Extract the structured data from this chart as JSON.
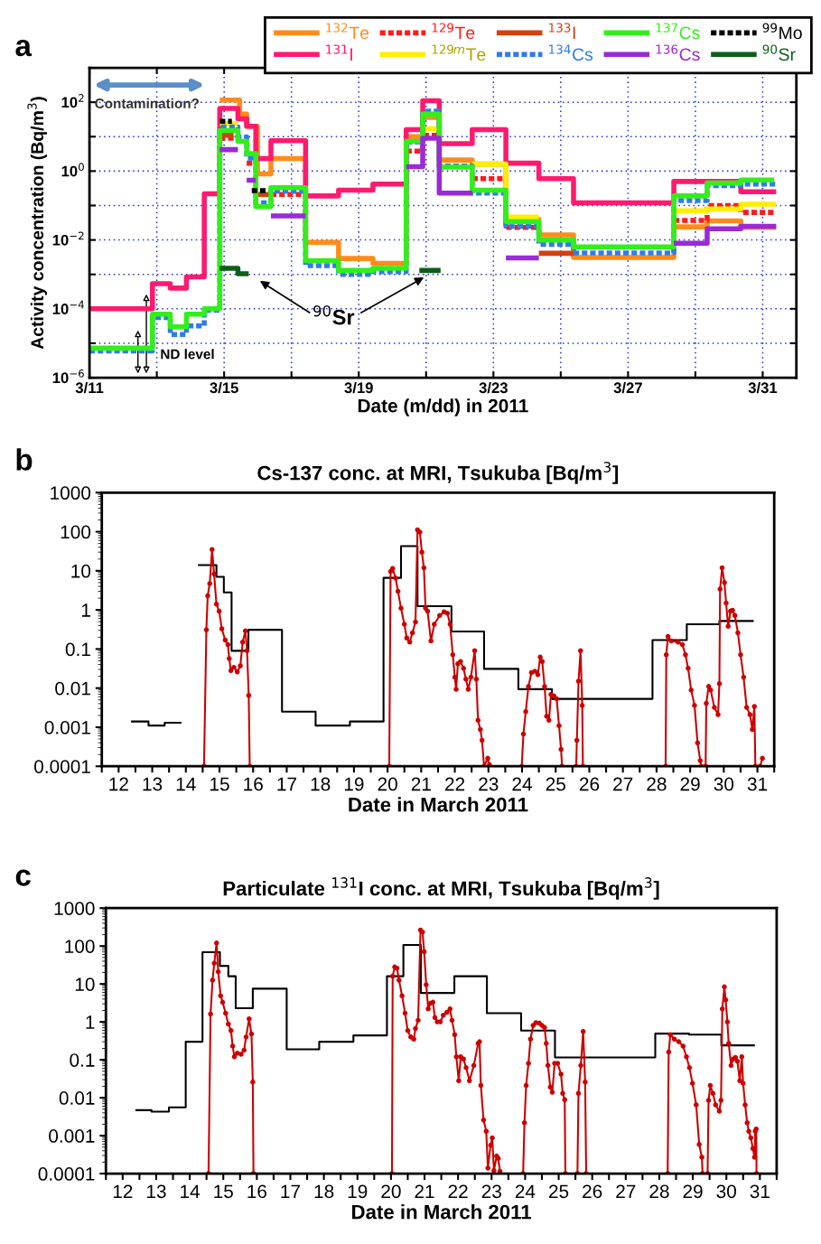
{
  "chart_data": [
    {
      "type": "step",
      "xlabel": "Date (m/dd) in 2011",
      "ylabel": "Activity concentration (Bq/m$^{3}$)",
      "log": "y",
      "grid": true,
      "legend": "top right",
      "xlim": [
        "2011-03-11",
        "2011-04-01"
      ],
      "ylim": [
        1e-06,
        1000
      ],
      "xticks": [
        {
          "value": "2011-03-11",
          "label": "3/11"
        },
        {
          "value": "2011-03-13",
          "label": null
        },
        {
          "value": "2011-03-15",
          "label": "3/15"
        },
        {
          "value": "2011-03-17",
          "label": null
        },
        {
          "value": "2011-03-19",
          "label": "3/19"
        },
        {
          "value": "2011-03-21",
          "label": null
        },
        {
          "value": "2011-03-23",
          "label": "3/23"
        },
        {
          "value": "2011-03-25",
          "label": null
        },
        {
          "value": "2011-03-27",
          "label": "3/27"
        },
        {
          "value": "2011-03-29",
          "label": null
        },
        {
          "value": "2011-03-31",
          "label": "3/31"
        }
      ],
      "yticks": [
        {
          "value": 1e-06,
          "label": "10$^{−6}$"
        },
        {
          "value": 1e-05,
          "label": null
        },
        {
          "value": 0.0001,
          "label": "10$^{−4}$"
        },
        {
          "value": 0.001,
          "label": null
        },
        {
          "value": 0.01,
          "label": "10$^{−2}$"
        },
        {
          "value": 0.1,
          "label": null
        },
        {
          "value": 1,
          "label": "10$^{0}$"
        },
        {
          "value": 10,
          "label": null
        },
        {
          "value": 100,
          "label": "10$^{2}$"
        },
        {
          "value": 1000,
          "label": null
        }
      ],
      "annotations": [
        "a",
        "Contamination?",
        "ND level",
        "$^{90}$Sr"
      ],
      "series": [
        {
          "name": "$^{132}$Te",
          "color": "#ff8c1a",
          "x": [
            "2011-03-14T20:53",
            "2011-03-15T11:02",
            "2011-03-15T16:05",
            "2011-03-15T23:46",
            "2011-03-16T09:22",
            "2011-03-17T10:05",
            "2011-03-18T09:36",
            "2011-03-19T10:05",
            "2011-03-20T09:50",
            "2011-03-20T21:36",
            "2011-03-21T09:22",
            "2011-03-22T08:53",
            "2011-03-23T08:53",
            "2011-03-24T08:24",
            "2011-03-25T09:07",
            "2011-03-28T08:38",
            "2011-03-29T08:24",
            "2011-03-30T08:24",
            "2011-03-31T09:36"
          ],
          "values": [
            115,
            45,
            20,
            0.83,
            2.3,
            0.0085,
            0.0029,
            0.0021,
            10,
            36,
            2.1,
            1.6,
            0.04,
            0.014,
            0.0031,
            0.024,
            0.036,
            0.023,
            0.023
          ]
        },
        {
          "name": "$^{131}$I",
          "color": "#ff1a6e",
          "x": [
            "2011-03-11T00:00",
            "2011-03-12T20:53",
            "2011-03-13T09:36",
            "2011-03-13T21:07",
            "2011-03-14T09:50",
            "2011-03-14T20:53",
            "2011-03-15T09:50",
            "2011-03-15T16:05",
            "2011-03-15T22:34",
            "2011-03-16T09:22",
            "2011-03-17T10:05",
            "2011-03-18T09:36",
            "2011-03-19T10:05",
            "2011-03-20T09:50",
            "2011-03-20T21:36",
            "2011-03-21T09:22",
            "2011-03-22T08:53",
            "2011-03-23T08:53",
            "2011-03-24T08:24",
            "2011-03-25T09:07",
            "2011-03-28T08:38",
            "2011-03-30T08:24",
            "2011-03-31T09:36"
          ],
          "values": [
            0.0001,
            0.00054,
            0.0004,
            0.00085,
            0.22,
            66,
            33,
            20,
            2.3,
            7.6,
            0.19,
            0.28,
            0.42,
            16,
            110,
            6.3,
            16,
            1.7,
            0.6,
            0.12,
            0.5,
            0.25,
            0.25
          ]
        },
        {
          "name": "$^{129}$Te",
          "color": "#ff1a1a",
          "line_style": "dashed",
          "x": [
            "2011-03-14T20:53",
            "2011-03-15T09:50",
            "2011-03-15T16:05",
            "2011-03-15T22:34",
            "2011-03-16T09:22",
            "2011-03-17T10:05",
            "2011-03-20T09:50",
            "2011-03-20T21:36",
            "2011-03-21T09:22",
            "2011-03-22T08:53",
            "2011-03-23T08:53",
            "2011-03-24T08:24",
            "2011-03-28T08:38",
            "2011-03-29T08:24",
            "2011-03-30T08:24",
            "2011-03-31T09:36"
          ],
          "values": [
            9,
            null,
            1.7,
            null,
            0.21,
            null,
            3.8,
            11,
            null,
            0.6,
            0.023,
            null,
            0.037,
            0.1,
            0.063,
            0.063
          ]
        },
        {
          "name": "$^{129m}$Te",
          "color": "#ffee00",
          "x": [
            "2011-03-14T20:53",
            "2011-03-15T09:50",
            "2011-03-20T21:36",
            "2011-03-21T09:22",
            "2011-03-22T08:53",
            "2011-03-23T08:53",
            "2011-03-24T08:24",
            "2011-03-28T08:38",
            "2011-03-29T08:24",
            "2011-03-30T08:24",
            "2011-03-31T09:36"
          ],
          "values": [
            24,
            null,
            17,
            null,
            1.6,
            0.046,
            null,
            0.07,
            0.08,
            0.11,
            0.11
          ]
        },
        {
          "name": "$^{133}$I",
          "color": "#d4400c",
          "x": [
            "2011-03-14T20:53",
            "2011-03-15T06:43",
            "2011-03-15T22:34",
            "2011-03-16T09:22",
            "2011-03-24T08:24",
            "2011-03-25T09:07"
          ],
          "values": [
            11,
            null,
            0.21,
            null,
            0.0041,
            0.0041
          ]
        },
        {
          "name": "$^{134}$Cs",
          "color": "#2f7bf0",
          "line_style": "dashed",
          "x": [
            "2011-03-11T00:00",
            "2011-03-12T20:53",
            "2011-03-13T09:36",
            "2011-03-13T21:07",
            "2011-03-14T09:50",
            "2011-03-14T20:53",
            "2011-03-15T09:50",
            "2011-03-15T16:05",
            "2011-03-15T22:34",
            "2011-03-16T09:22",
            "2011-03-17T10:05",
            "2011-03-18T09:36",
            "2011-03-19T10:05",
            "2011-03-20T09:50",
            "2011-03-20T21:36",
            "2011-03-21T09:22",
            "2011-03-22T08:53",
            "2011-03-23T08:53",
            "2011-03-24T08:24",
            "2011-03-25T09:07",
            "2011-03-28T08:38",
            "2011-03-29T08:24",
            "2011-03-30T08:24",
            "2011-03-31T09:36"
          ],
          "values": [
            6e-06,
            5.6e-05,
            1.8e-05,
            3.2e-05,
            9e-05,
            19,
            9.8,
            2.4,
            0.12,
            0.26,
            0.0018,
            0.001,
            0.0012,
            7,
            55,
            1.4,
            0.23,
            0.025,
            0.0074,
            0.0042,
            0.14,
            0.38,
            0.42,
            0.42
          ]
        },
        {
          "name": "$^{137}$Cs",
          "color": "#33ee1a",
          "x": [
            "2011-03-11T00:00",
            "2011-03-12T20:53",
            "2011-03-13T09:36",
            "2011-03-13T21:07",
            "2011-03-14T09:50",
            "2011-03-14T20:53",
            "2011-03-15T09:50",
            "2011-03-15T16:05",
            "2011-03-15T22:34",
            "2011-03-16T09:22",
            "2011-03-17T10:05",
            "2011-03-18T09:36",
            "2011-03-19T10:05",
            "2011-03-20T09:50",
            "2011-03-20T21:36",
            "2011-03-21T09:22",
            "2011-03-22T08:53",
            "2011-03-23T08:53",
            "2011-03-24T08:24",
            "2011-03-25T09:07",
            "2011-03-28T08:38",
            "2011-03-29T08:24",
            "2011-03-30T08:24",
            "2011-03-31T08:10"
          ],
          "values": [
            7.2e-06,
            7e-05,
            3e-05,
            7e-05,
            0.0001,
            15,
            7.3,
            3.2,
            0.093,
            0.33,
            0.0025,
            0.0013,
            0.0015,
            7.3,
            45,
            1.3,
            0.28,
            0.034,
            0.01,
            0.0063,
            0.19,
            0.45,
            0.55,
            0.55
          ]
        },
        {
          "name": "$^{136}$Cs",
          "color": "#9a2ad6",
          "x": [
            "2011-03-14T20:53",
            "2011-03-15T09:50",
            "2011-03-15T16:05",
            "2011-03-15T22:34",
            "2011-03-16T09:22",
            "2011-03-17T10:05",
            "2011-03-20T09:50",
            "2011-03-20T21:36",
            "2011-03-21T09:22",
            "2011-03-22T08:53",
            "2011-03-23T08:53",
            "2011-03-24T08:24",
            "2011-03-28T08:38",
            "2011-03-29T08:24",
            "2011-03-30T08:24",
            "2011-03-31T09:36"
          ],
          "values": [
            4.2,
            null,
            0.54,
            null,
            0.05,
            null,
            1.35,
            9,
            0.23,
            null,
            0.003,
            null,
            0.008,
            0.021,
            0.025,
            0.025
          ]
        },
        {
          "name": "$^{99}$Mo",
          "color": "#000000",
          "line_style": "dashed",
          "x": [
            "2011-03-14T20:53",
            "2011-03-15T05:31",
            "2011-03-15T19:41",
            "2011-03-16T06:29"
          ],
          "values": [
            28,
            null,
            0.27,
            0.27
          ]
        },
        {
          "name": "$^{90}$Sr",
          "color": "#0d5e1a",
          "x": [
            "2011-03-14T20:53",
            "2011-03-15T09:50",
            "2011-03-15T17:31",
            "2011-03-20T19:12",
            "2011-03-21T10:19"
          ],
          "values": [
            0.0015,
            0.00105,
            null,
            0.0013,
            0.0013
          ]
        }
      ]
    },
    {
      "type": "line",
      "title": "Cs-137 conc. at MRI, Tsukuba [Bq/m$^{3}$]",
      "xlabel": "Date in March 2011",
      "log": "y",
      "xlim": [
        12,
        32
      ],
      "ylim": [
        0.0001,
        1000
      ],
      "xticks": [
        {
          "value": 12,
          "label": null
        },
        {
          "value": 12.5,
          "label": "12"
        },
        {
          "value": 13,
          "label": null
        },
        {
          "value": 13.5,
          "label": "13"
        },
        {
          "value": 14,
          "label": null
        },
        {
          "value": 14.5,
          "label": "14"
        },
        {
          "value": 15,
          "label": null
        },
        {
          "value": 15.5,
          "label": "15"
        },
        {
          "value": 16,
          "label": null
        },
        {
          "value": 16.5,
          "label": "16"
        },
        {
          "value": 17,
          "label": null
        },
        {
          "value": 17.5,
          "label": "17"
        },
        {
          "value": 18,
          "label": null
        },
        {
          "value": 18.5,
          "label": "18"
        },
        {
          "value": 19,
          "label": null
        },
        {
          "value": 19.5,
          "label": "19"
        },
        {
          "value": 20,
          "label": null
        },
        {
          "value": 20.5,
          "label": "20"
        },
        {
          "value": 21,
          "label": null
        },
        {
          "value": 21.5,
          "label": "21"
        },
        {
          "value": 22,
          "label": null
        },
        {
          "value": 22.5,
          "label": "22"
        },
        {
          "value": 23,
          "label": null
        },
        {
          "value": 23.5,
          "label": "23"
        },
        {
          "value": 24,
          "label": null
        },
        {
          "value": 24.5,
          "label": "24"
        },
        {
          "value": 25,
          "label": null
        },
        {
          "value": 25.5,
          "label": "25"
        },
        {
          "value": 26,
          "label": null
        },
        {
          "value": 26.5,
          "label": "26"
        },
        {
          "value": 27,
          "label": null
        },
        {
          "value": 27.5,
          "label": "27"
        },
        {
          "value": 28,
          "label": null
        },
        {
          "value": 28.5,
          "label": "28"
        },
        {
          "value": 29,
          "label": null
        },
        {
          "value": 29.5,
          "label": "29"
        },
        {
          "value": 30,
          "label": null
        },
        {
          "value": 30.5,
          "label": "30"
        },
        {
          "value": 31,
          "label": null
        },
        {
          "value": 31.5,
          "label": "31"
        },
        {
          "value": 32,
          "label": null
        }
      ],
      "yticks": [
        0.0001,
        0.001,
        0.01,
        0.1,
        1,
        10,
        100,
        1000
      ],
      "annotations": [
        "b"
      ],
      "series": [
        {
          "type": "step",
          "color": "#000000",
          "x": [
            12.87,
            13.39,
            13.87,
            14.37,
            14.86,
            15.41,
            15.63,
            15.86,
            16.36,
            17.36,
            18.36,
            19.38,
            20.38,
            20.9,
            21.39,
            22.4,
            23.37,
            24.39,
            25.39,
            28.38,
            29.4,
            30.37,
            31.39
          ],
          "values": [
            0.0014,
            0.0011,
            0.0013,
            null,
            14,
            7,
            2.8,
            0.09,
            0.31,
            0.0025,
            0.0011,
            0.0014,
            6.6,
            43,
            1.25,
            0.28,
            0.031,
            0.0094,
            0.0053,
            0.17,
            0.43,
            0.52,
            0.52
          ]
        },
        {
          "type": "line",
          "color": "#cc0000",
          "marker": "circle",
          "x": [
            15.04,
            15.11,
            15.15,
            15.21,
            15.28,
            15.34,
            15.41,
            15.49,
            15.57,
            15.67,
            15.75,
            15.79,
            15.84,
            15.93,
            16.03,
            16.12,
            16.19,
            16.27,
            16.32,
            16.37,
            16.4,
            18,
            20.55,
            20.59,
            20.65,
            20.74,
            20.81,
            20.9,
            21.0,
            21.07,
            21.16,
            21.24,
            21.33,
            21.39,
            21.46,
            21.52,
            21.58,
            21.63,
            21.69,
            21.79,
            21.89,
            22.05,
            22.18,
            22.28,
            22.36,
            22.44,
            22.5,
            22.54,
            22.59,
            22.67,
            22.76,
            22.83,
            22.9,
            22.98,
            23.09,
            23.14,
            23.19,
            23.26,
            23.31,
            23.37,
            23.48,
            23.53,
            24,
            24.49,
            24.54,
            24.61,
            24.69,
            24.78,
            24.88,
            24.97,
            25.04,
            25.1,
            25.17,
            25.23,
            25.3,
            25.36,
            25.45,
            25.53,
            25.6,
            25.66,
            25.69,
            25.9,
            26.11,
            26.13,
            26.18,
            26.24,
            26.29,
            26.31,
            27,
            28.77,
            28.79,
            28.84,
            28.94,
            29.14,
            29.27,
            29.36,
            29.44,
            29.53,
            29.63,
            29.72,
            29.8,
            29.83,
            29.9,
            29.96,
            29.98,
            30.05,
            30.11,
            30.22,
            30.33,
            30.37,
            30.39,
            30.45,
            30.52,
            30.57,
            30.63,
            30.7,
            30.76,
            30.83,
            30.92,
            31.0,
            31.09,
            31.18,
            31.28,
            31.35,
            31.41,
            31.44,
            31.5,
            31.58,
            31.65
          ],
          "values": [
            0.0001,
            0.31,
            2.3,
            4.7,
            35,
            8.3,
            1.4,
            0.93,
            0.33,
            0.17,
            0.13,
            0.057,
            0.028,
            0.034,
            0.026,
            0.037,
            0.15,
            0.29,
            0.091,
            0.0065,
            0.0001,
            null,
            0.0001,
            9.6,
            11.5,
            6.5,
            3.0,
            1.1,
            0.43,
            0.19,
            0.15,
            0.26,
            0.49,
            112,
            98,
            30,
            12,
            1.1,
            0.93,
            0.16,
            0.43,
            0.72,
            0.89,
            0.82,
            0.43,
            0.071,
            0.019,
            0.0093,
            0.042,
            0.048,
            0.032,
            0.017,
            0.0093,
            0.019,
            0.091,
            0.017,
            0.0015,
            0.00087,
            0.00046,
            0.0001,
            0.00016,
            0.00011,
            null,
            0.0001,
            0.00067,
            0.0025,
            0.011,
            0.025,
            0.027,
            0.022,
            0.062,
            0.048,
            0.011,
            0.0019,
            0.0015,
            0.0069,
            0.0063,
            0.0053,
            0.0011,
            0.00027,
            0.0001,
            null,
            0.0001,
            0.00046,
            0.015,
            0.091,
            0.0036,
            0.0001,
            null,
            0.0001,
            0.071,
            0.21,
            0.16,
            0.15,
            0.13,
            0.071,
            0.032,
            0.0089,
            0.0036,
            0.0004,
            0.00014,
            0.0001,
            null,
            0.0001,
            0.0041,
            0.011,
            0.0089,
            0.0032,
            0.0021,
            0.013,
            3.4,
            12,
            5.0,
            1.5,
            0.38,
            0.93,
            0.98,
            0.72,
            0.26,
            0.071,
            0.019,
            0.0032,
            0.0021,
            0.00087,
            0.0034,
            0.0001,
            null,
            0.0001,
            0.00016
          ]
        }
      ]
    },
    {
      "type": "line",
      "title": "Particulate $^{131}$I conc. at MRI, Tsukuba [Bq/m$^{3}$]",
      "xlabel": "Date in March 2011",
      "log": "y",
      "xlim": [
        12,
        32
      ],
      "ylim": [
        0.0001,
        1000
      ],
      "xticks": [
        {
          "value": 12,
          "label": null
        },
        {
          "value": 12.5,
          "label": "12"
        },
        {
          "value": 13,
          "label": null
        },
        {
          "value": 13.5,
          "label": "13"
        },
        {
          "value": 14,
          "label": null
        },
        {
          "value": 14.5,
          "label": "14"
        },
        {
          "value": 15,
          "label": null
        },
        {
          "value": 15.5,
          "label": "15"
        },
        {
          "value": 16,
          "label": null
        },
        {
          "value": 16.5,
          "label": "16"
        },
        {
          "value": 17,
          "label": null
        },
        {
          "value": 17.5,
          "label": "17"
        },
        {
          "value": 18,
          "label": null
        },
        {
          "value": 18.5,
          "label": "18"
        },
        {
          "value": 19,
          "label": null
        },
        {
          "value": 19.5,
          "label": "19"
        },
        {
          "value": 20,
          "label": null
        },
        {
          "value": 20.5,
          "label": "20"
        },
        {
          "value": 21,
          "label": null
        },
        {
          "value": 21.5,
          "label": "21"
        },
        {
          "value": 22,
          "label": null
        },
        {
          "value": 22.5,
          "label": "22"
        },
        {
          "value": 23,
          "label": null
        },
        {
          "value": 23.5,
          "label": "23"
        },
        {
          "value": 24,
          "label": null
        },
        {
          "value": 24.5,
          "label": "24"
        },
        {
          "value": 25,
          "label": null
        },
        {
          "value": 25.5,
          "label": "25"
        },
        {
          "value": 26,
          "label": null
        },
        {
          "value": 26.5,
          "label": "26"
        },
        {
          "value": 27,
          "label": null
        },
        {
          "value": 27.5,
          "label": "27"
        },
        {
          "value": 28,
          "label": null
        },
        {
          "value": 28.5,
          "label": "28"
        },
        {
          "value": 29,
          "label": null
        },
        {
          "value": 29.5,
          "label": "29"
        },
        {
          "value": 30,
          "label": null
        },
        {
          "value": 30.5,
          "label": "30"
        },
        {
          "value": 31,
          "label": null
        },
        {
          "value": 31.5,
          "label": "31"
        },
        {
          "value": 32,
          "label": null
        }
      ],
      "yticks": [
        0.0001,
        0.001,
        0.01,
        0.1,
        1,
        10,
        100,
        1000
      ],
      "annotations": [
        "c"
      ],
      "series": [
        {
          "type": "step",
          "color": "#000000",
          "x": [
            12.88,
            13.36,
            13.88,
            14.38,
            14.88,
            15.4,
            15.65,
            15.87,
            16.38,
            17.39,
            18.36,
            19.38,
            20.38,
            20.87,
            21.39,
            22.39,
            23.36,
            24.38,
            25.39,
            28.38,
            29.39,
            30.35,
            31.35
          ],
          "values": [
            0.0047,
            0.0043,
            0.0056,
            0.3,
            69,
            30,
            16,
            2.3,
            7.5,
            0.19,
            0.3,
            0.44,
            16,
            107,
            5.8,
            16,
            1.7,
            0.59,
            0.115,
            0.49,
            0.46,
            0.24,
            0.24
          ]
        },
        {
          "type": "line",
          "color": "#cc0000",
          "marker": "circle",
          "x": [
            15.06,
            15.12,
            15.18,
            15.23,
            15.3,
            15.35,
            15.42,
            15.48,
            15.57,
            15.65,
            15.73,
            15.78,
            15.83,
            15.92,
            16.03,
            16.12,
            16.18,
            16.27,
            16.34,
            16.38,
            16.4,
            18,
            20.53,
            20.55,
            20.61,
            20.68,
            20.74,
            20.83,
            20.92,
            21.0,
            21.09,
            21.18,
            21.23,
            21.31,
            21.38,
            21.44,
            21.49,
            21.55,
            21.61,
            21.68,
            21.75,
            21.81,
            21.88,
            21.97,
            22.06,
            22.17,
            22.26,
            22.32,
            22.4,
            22.45,
            22.52,
            22.58,
            22.66,
            22.74,
            22.84,
            22.97,
            23.1,
            23.14,
            23.18,
            23.26,
            23.34,
            23.39,
            23.47,
            23.52,
            23.57,
            23.65,
            23.7,
            23.75,
            24,
            24.44,
            24.48,
            24.53,
            24.6,
            24.66,
            24.74,
            24.82,
            24.92,
            25.0,
            25.08,
            25.13,
            25.18,
            25.25,
            25.31,
            25.38,
            25.47,
            25.57,
            25.62,
            25.68,
            25.7,
            25.9,
            26.06,
            26.09,
            26.16,
            26.23,
            26.29,
            26.32,
            27,
            28.75,
            28.78,
            28.83,
            28.95,
            29.08,
            29.21,
            29.31,
            29.4,
            29.49,
            29.6,
            29.69,
            29.77,
            29.79,
            29.85,
            29.94,
            29.97,
            30.02,
            30.1,
            30.18,
            30.29,
            30.34,
            30.38,
            30.44,
            30.48,
            30.53,
            30.57,
            30.64,
            30.7,
            30.77,
            30.83,
            30.9,
            30.96,
            31.0,
            31.06,
            31.12,
            31.17,
            31.23,
            31.29,
            31.34,
            31.36,
            31.39,
            31.4
          ],
          "values": [
            0.0001,
            1.6,
            12.6,
            35,
            120,
            21,
            4.9,
            3.3,
            1.7,
            0.88,
            0.59,
            0.23,
            0.12,
            0.15,
            0.14,
            0.18,
            0.4,
            1.2,
            0.48,
            0.026,
            0.0001,
            null,
            0.0001,
            16,
            28,
            26,
            12.6,
            4.9,
            1.7,
            0.59,
            0.4,
            0.35,
            0.67,
            1.1,
            265,
            233,
            71,
            9.6,
            2.2,
            3.1,
            3.3,
            1.3,
            1.0,
            1.0,
            1.5,
            1.8,
            2.2,
            1.1,
            0.46,
            0.12,
            0.028,
            0.12,
            0.105,
            0.062,
            0.028,
            0.071,
            0.27,
            0.3,
            0.021,
            0.0026,
            0.0013,
            0.00014,
            0.00056,
            0.00088,
            0.00012,
            0.00029,
            0.00025,
            0.000115,
            null,
            0.0001,
            0.0022,
            0.021,
            0.081,
            0.35,
            0.81,
            0.95,
            0.93,
            0.81,
            0.71,
            0.27,
            0.071,
            0.019,
            0.014,
            0.081,
            0.081,
            0.042,
            0.013,
            0.0089,
            0.0001,
            null,
            0.0001,
            0.013,
            0.071,
            0.56,
            0.026,
            0.0001,
            null,
            0.0001,
            0.16,
            0.46,
            0.35,
            0.3,
            0.23,
            0.12,
            0.062,
            0.024,
            0.0065,
            0.00059,
            0.00027,
            0.0001,
            null,
            0.0001,
            0.0085,
            0.021,
            0.013,
            0.0065,
            0.0044,
            0.0085,
            2.2,
            8.4,
            3.8,
            1.0,
            0.27,
            0.071,
            0.105,
            0.115,
            0.091,
            0.028,
            0.12,
            0.024,
            0.0065,
            0.0022,
            0.0013,
            0.00088,
            0.00046,
            0.00027,
            0.0013,
            0.0015,
            0.0001
          ]
        }
      ]
    }
  ]
}
